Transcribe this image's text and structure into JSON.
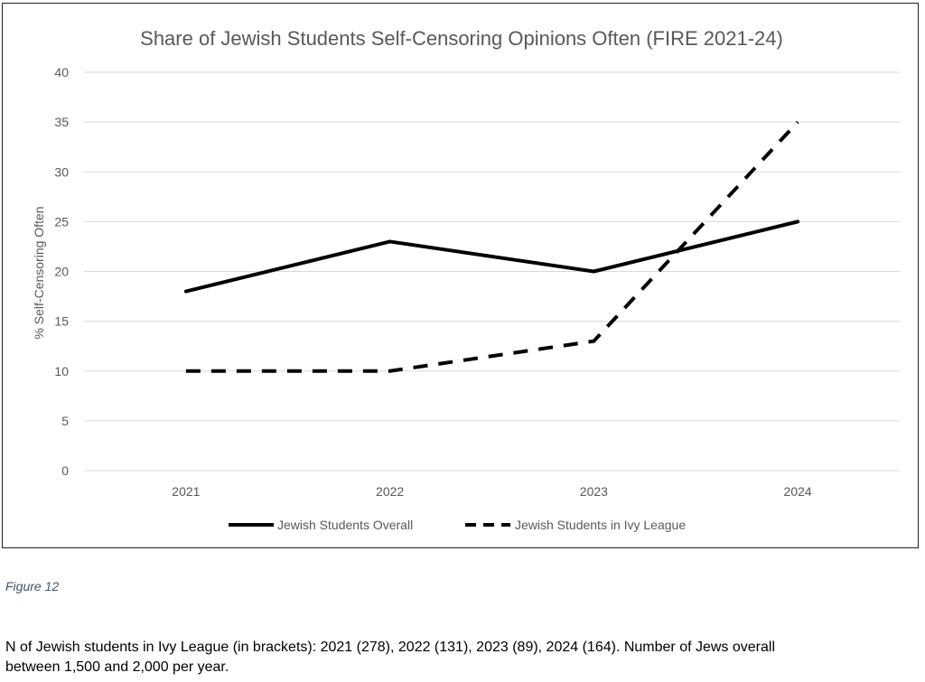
{
  "chart_data": {
    "type": "line",
    "title": "Share of Jewish Students Self-Censoring Opinions Often (FIRE 2021-24)",
    "xlabel": "",
    "ylabel": "% Self-Censoring Often",
    "categories": [
      "2021",
      "2022",
      "2023",
      "2024"
    ],
    "ylim": [
      0,
      40
    ],
    "yticks": [
      0,
      5,
      10,
      15,
      20,
      25,
      30,
      35,
      40
    ],
    "grid": true,
    "legend_position": "bottom",
    "series": [
      {
        "name": "Jewish Students Overall",
        "values": [
          18,
          23,
          20,
          25
        ],
        "style": "solid",
        "color": "#000000"
      },
      {
        "name": "Jewish Students in Ivy League",
        "values": [
          10,
          10,
          13,
          35
        ],
        "style": "dashed",
        "color": "#000000"
      }
    ]
  },
  "caption": {
    "figure_label": "Figure 12"
  },
  "note": {
    "line1": "N of Jewish students in Ivy League (in brackets): 2021 (278), 2022 (131), 2023 (89), 2024 (164). Number of Jews overall",
    "line2": "between 1,500 and 2,000 per year."
  }
}
